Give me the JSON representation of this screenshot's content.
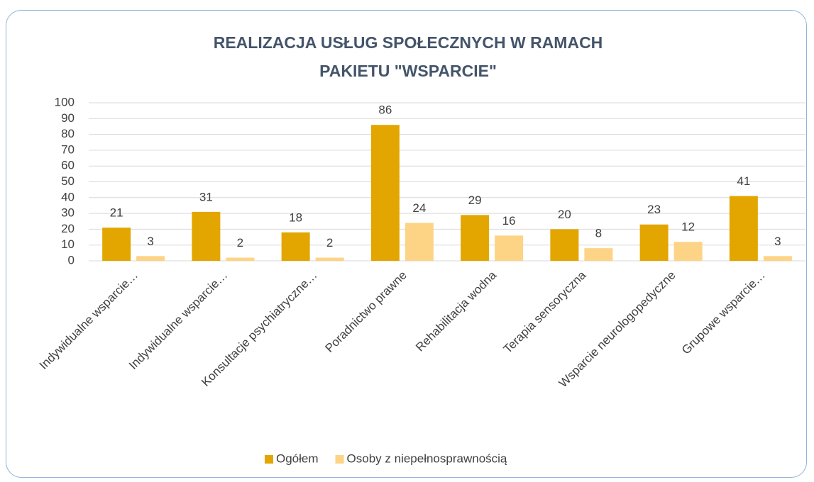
{
  "chart_data": {
    "type": "bar",
    "title": "REALIZACJA USŁUG SPOŁECZNYCH W RAMACH PAKIETU \"WSPARCIE\"",
    "categories": [
      "Indywidualne wsparcie…",
      "Indywidualne wsparcie…",
      "Konsultacje psychiatryczne…",
      "Poradnictwo prawne",
      "Rehabilitacja wodna",
      "Terapia sensoryczna",
      "Wsparcie neurologopedyczne",
      "Grupowe wsparcie…"
    ],
    "series": [
      {
        "name": "Ogółem",
        "color": "#e3a600",
        "values": [
          21,
          31,
          18,
          86,
          29,
          20,
          23,
          41
        ]
      },
      {
        "name": "Osoby z niepełnosprawnością",
        "color": "#fdd385",
        "values": [
          3,
          2,
          2,
          24,
          16,
          8,
          12,
          3
        ]
      }
    ],
    "ylim": [
      0,
      100
    ],
    "yticks": [
      0,
      10,
      20,
      30,
      40,
      50,
      60,
      70,
      80,
      90,
      100
    ],
    "grid": true,
    "legend": "bottom"
  }
}
